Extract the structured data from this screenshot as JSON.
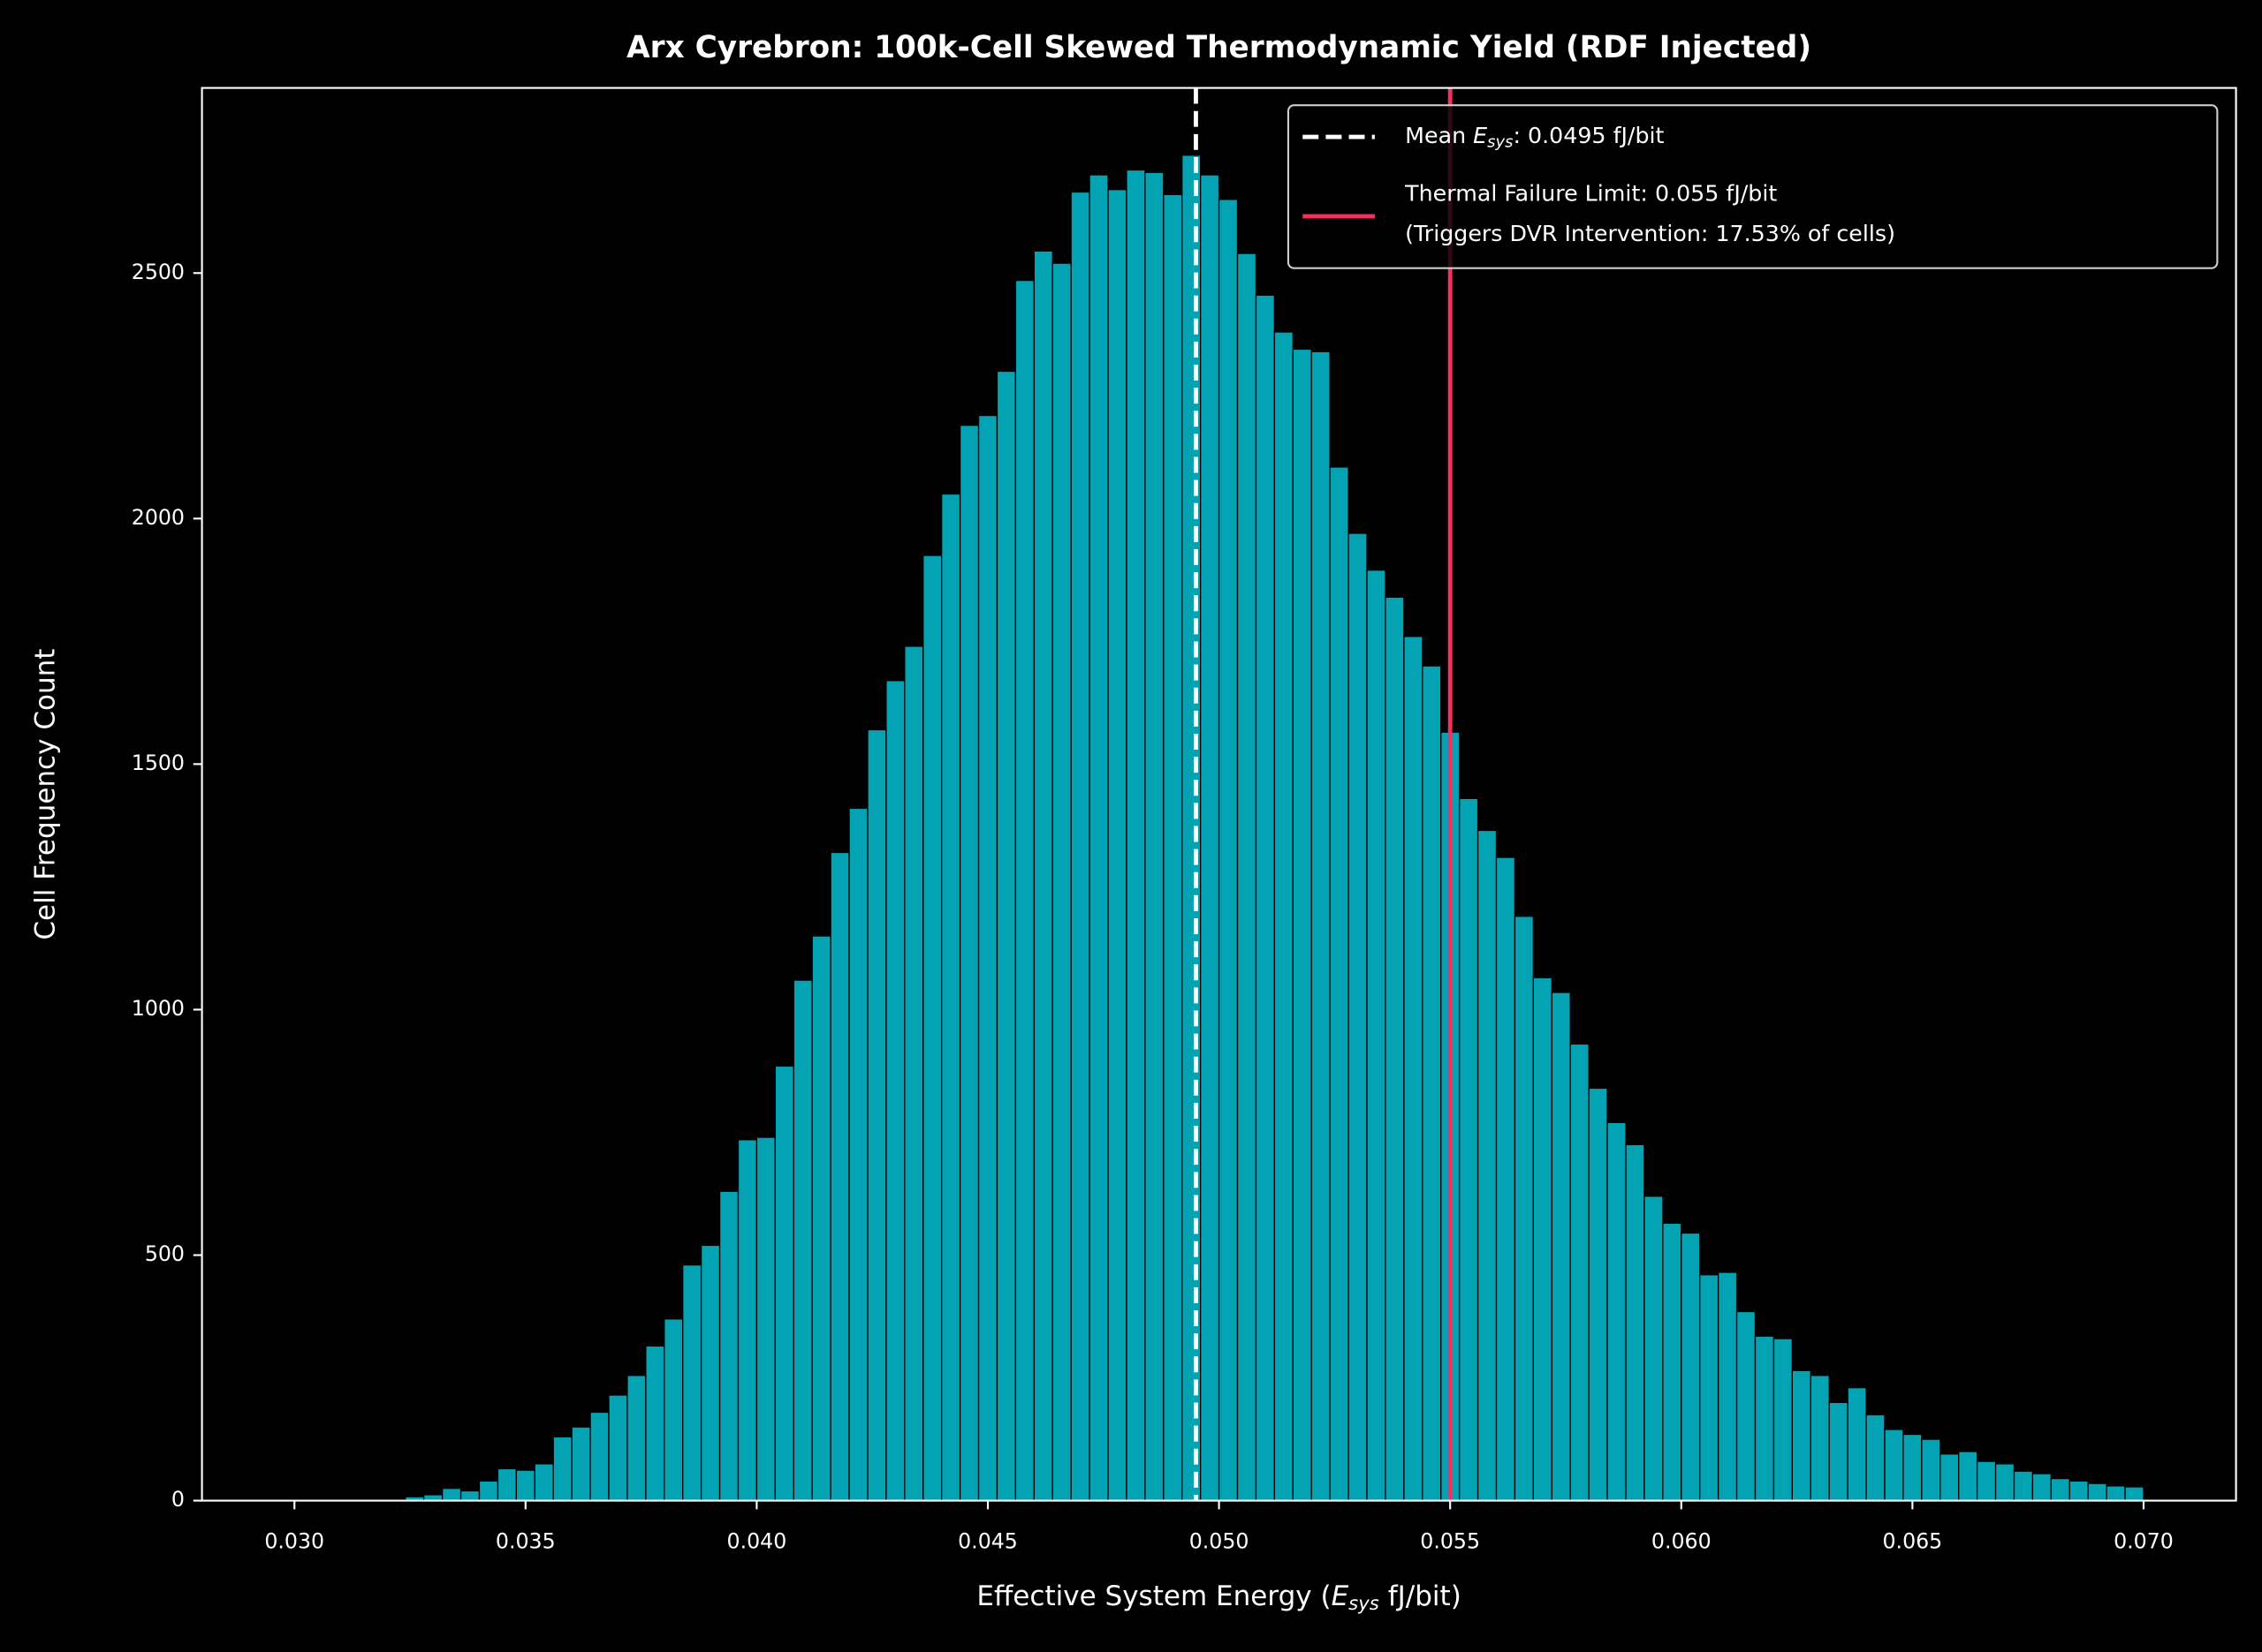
{
  "chart_data": {
    "type": "histogram",
    "title": "Arx Cyrebron: 100k-Cell Skewed Thermodynamic Yield (RDF Injected)",
    "xlabel": [
      "Effective System Energy (",
      "E",
      "sys",
      " fJ/bit)"
    ],
    "ylabel": "Cell Frequency Count",
    "color": "#03a3b4",
    "bins": [
      0.03,
      0.0304,
      0.0308,
      0.0312,
      0.0316,
      0.032,
      0.0324,
      0.0328,
      0.0332,
      0.0336,
      0.034,
      0.0344,
      0.0348,
      0.0352,
      0.0356,
      0.036,
      0.0364,
      0.0368,
      0.0372,
      0.0376,
      0.038,
      0.0384,
      0.0388,
      0.0392,
      0.0396,
      0.04,
      0.0404,
      0.0408,
      0.0412,
      0.0416,
      0.042,
      0.0424,
      0.0428,
      0.0432,
      0.0436,
      0.044,
      0.0444,
      0.0448,
      0.0452,
      0.0456,
      0.046,
      0.0464,
      0.0468,
      0.0472,
      0.0476,
      0.048,
      0.0484,
      0.0488,
      0.0492,
      0.0496,
      0.05,
      0.0504,
      0.0508,
      0.0512,
      0.0516,
      0.052,
      0.0524,
      0.0528,
      0.0532,
      0.0536,
      0.054,
      0.0544,
      0.0548,
      0.0552,
      0.0556,
      0.056,
      0.0564,
      0.0568,
      0.0572,
      0.0576,
      0.058,
      0.0584,
      0.0588,
      0.0592,
      0.0596,
      0.06,
      0.0604,
      0.0608,
      0.0612,
      0.0616,
      0.062,
      0.0624,
      0.0628,
      0.0632,
      0.0636,
      0.064,
      0.0644,
      0.0648,
      0.0652,
      0.0656,
      0.066,
      0.0664,
      0.0668,
      0.0672,
      0.0676,
      0.068,
      0.0684,
      0.0688,
      0.0692,
      0.0696,
      0.07
    ],
    "counts": [
      0,
      0,
      0,
      0,
      2,
      3,
      8,
      12,
      25,
      20,
      40,
      65,
      62,
      75,
      130,
      150,
      180,
      215,
      255,
      315,
      370,
      480,
      520,
      630,
      735,
      740,
      885,
      1060,
      1150,
      1320,
      1410,
      1570,
      1670,
      1740,
      1925,
      2050,
      2190,
      2210,
      2300,
      2485,
      2545,
      2520,
      2665,
      2700,
      2670,
      2710,
      2705,
      2660,
      2740,
      2700,
      2650,
      2540,
      2455,
      2380,
      2345,
      2340,
      2105,
      1970,
      1895,
      1840,
      1760,
      1700,
      1565,
      1430,
      1365,
      1310,
      1190,
      1065,
      1035,
      930,
      840,
      770,
      725,
      620,
      565,
      545,
      460,
      465,
      385,
      335,
      330,
      265,
      255,
      200,
      230,
      175,
      145,
      135,
      125,
      95,
      100,
      80,
      75,
      60,
      55,
      45,
      40,
      35,
      30,
      28
    ],
    "vlines": [
      {
        "value": 0.0495,
        "color": "#ffffff",
        "style": "dashed",
        "label": [
          "Mean ",
          "E",
          "sys",
          ": 0.0495 fJ/bit"
        ]
      },
      {
        "value": 0.055,
        "color": "#f5305e",
        "style": "solid",
        "label": [
          "Thermal Failure Limit: 0.055 fJ/bit",
          "(Triggers DVR Intervention: 17.53% of cells)"
        ]
      }
    ],
    "xlim": [
      0.028,
      0.072
    ],
    "ylim": [
      0,
      2877
    ],
    "xticks": [
      {
        "value": 0.03,
        "label": "0.030"
      },
      {
        "value": 0.035,
        "label": "0.035"
      },
      {
        "value": 0.04,
        "label": "0.040"
      },
      {
        "value": 0.045,
        "label": "0.045"
      },
      {
        "value": 0.05,
        "label": "0.050"
      },
      {
        "value": 0.055,
        "label": "0.055"
      },
      {
        "value": 0.06,
        "label": "0.060"
      },
      {
        "value": 0.065,
        "label": "0.065"
      },
      {
        "value": 0.07,
        "label": "0.070"
      }
    ],
    "yticks": [
      0,
      500,
      1000,
      1500,
      2000,
      2500
    ],
    "legend": "upper right"
  }
}
